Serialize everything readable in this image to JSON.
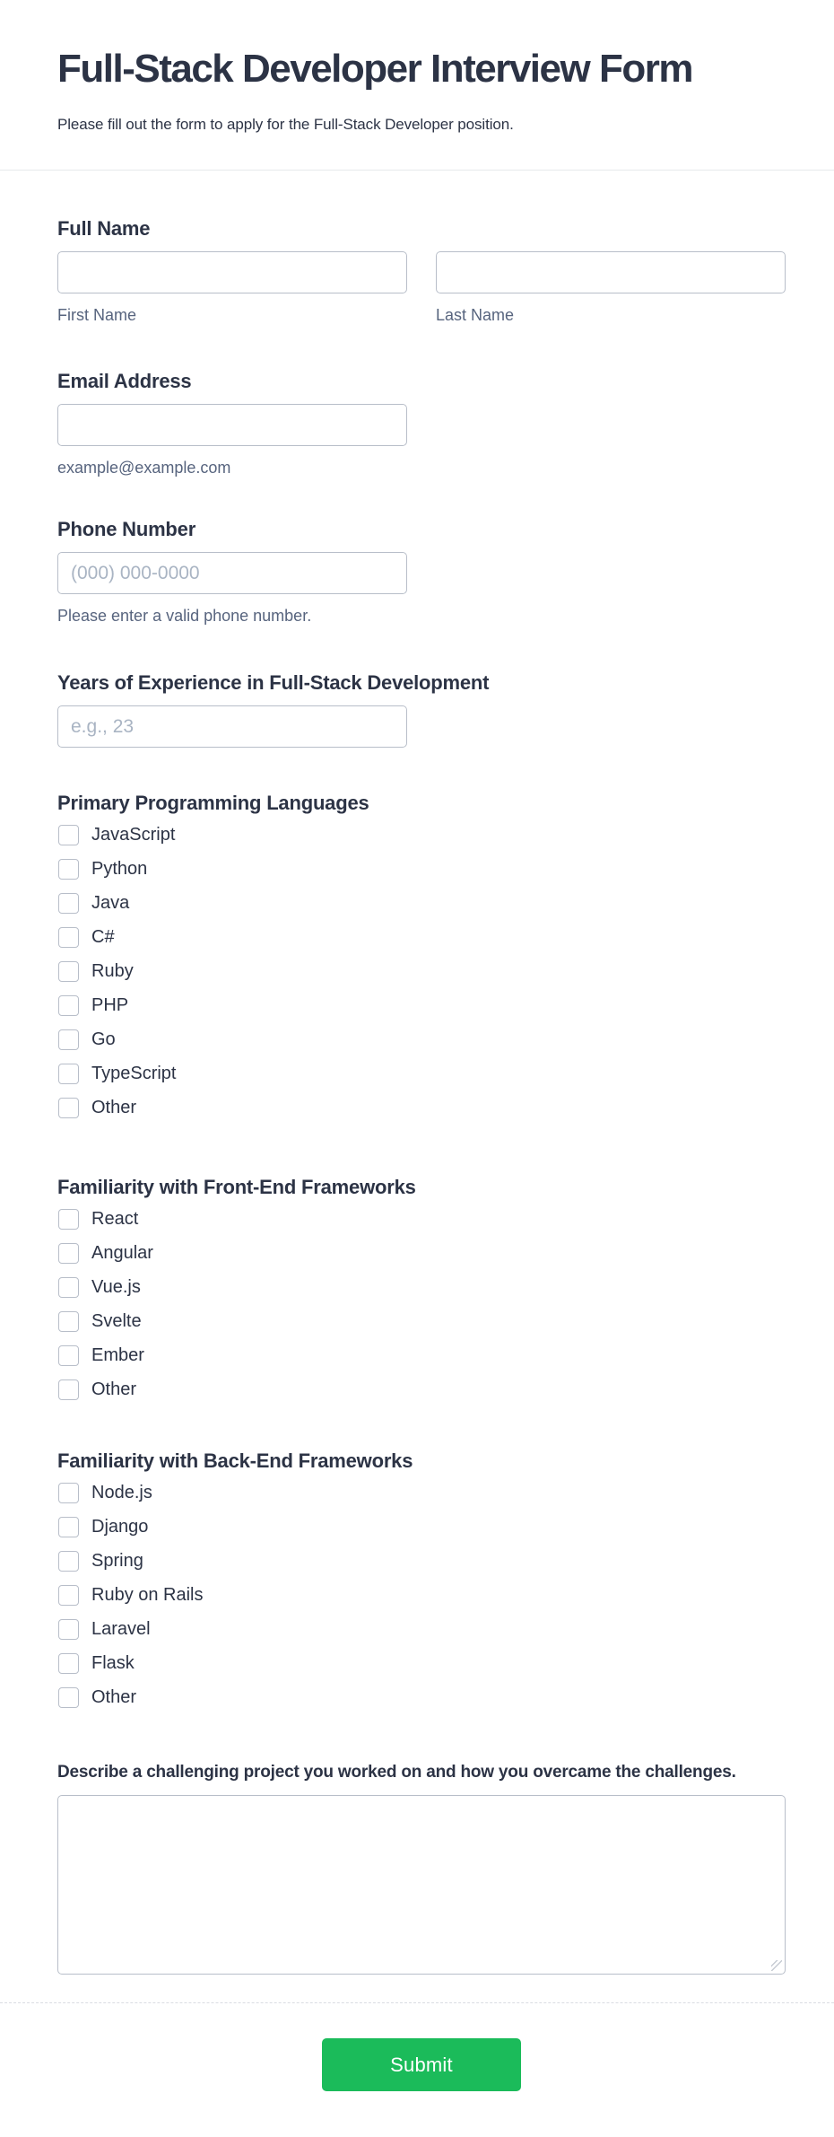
{
  "header": {
    "title": "Full-Stack Developer Interview Form",
    "subtitle": "Please fill out the form to apply for the Full-Stack Developer position."
  },
  "fields": {
    "full_name": {
      "label": "Full Name",
      "first_sublabel": "First Name",
      "last_sublabel": "Last Name"
    },
    "email": {
      "label": "Email Address",
      "hint": "example@example.com"
    },
    "phone": {
      "label": "Phone Number",
      "placeholder": "(000) 000-0000",
      "hint": "Please enter a valid phone number."
    },
    "experience": {
      "label": "Years of Experience in Full-Stack Development",
      "placeholder": "e.g., 23"
    },
    "languages": {
      "label": "Primary Programming Languages",
      "options": [
        "JavaScript",
        "Python",
        "Java",
        "C#",
        "Ruby",
        "PHP",
        "Go",
        "TypeScript",
        "Other"
      ]
    },
    "frontend_frameworks": {
      "label": "Familiarity with Front-End Frameworks",
      "options": [
        "React",
        "Angular",
        "Vue.js",
        "Svelte",
        "Ember",
        "Other"
      ]
    },
    "backend_frameworks": {
      "label": "Familiarity with Back-End Frameworks",
      "options": [
        "Node.js",
        "Django",
        "Spring",
        "Ruby on Rails",
        "Laravel",
        "Flask",
        "Other"
      ]
    },
    "project": {
      "label": "Describe a challenging project you worked on and how you overcame the challenges."
    }
  },
  "submit": {
    "label": "Submit"
  },
  "colors": {
    "accent_green": "#1bbb5a",
    "label_text": "#2c3345",
    "hint_text": "#57647e",
    "input_border": "#b8bec9"
  }
}
